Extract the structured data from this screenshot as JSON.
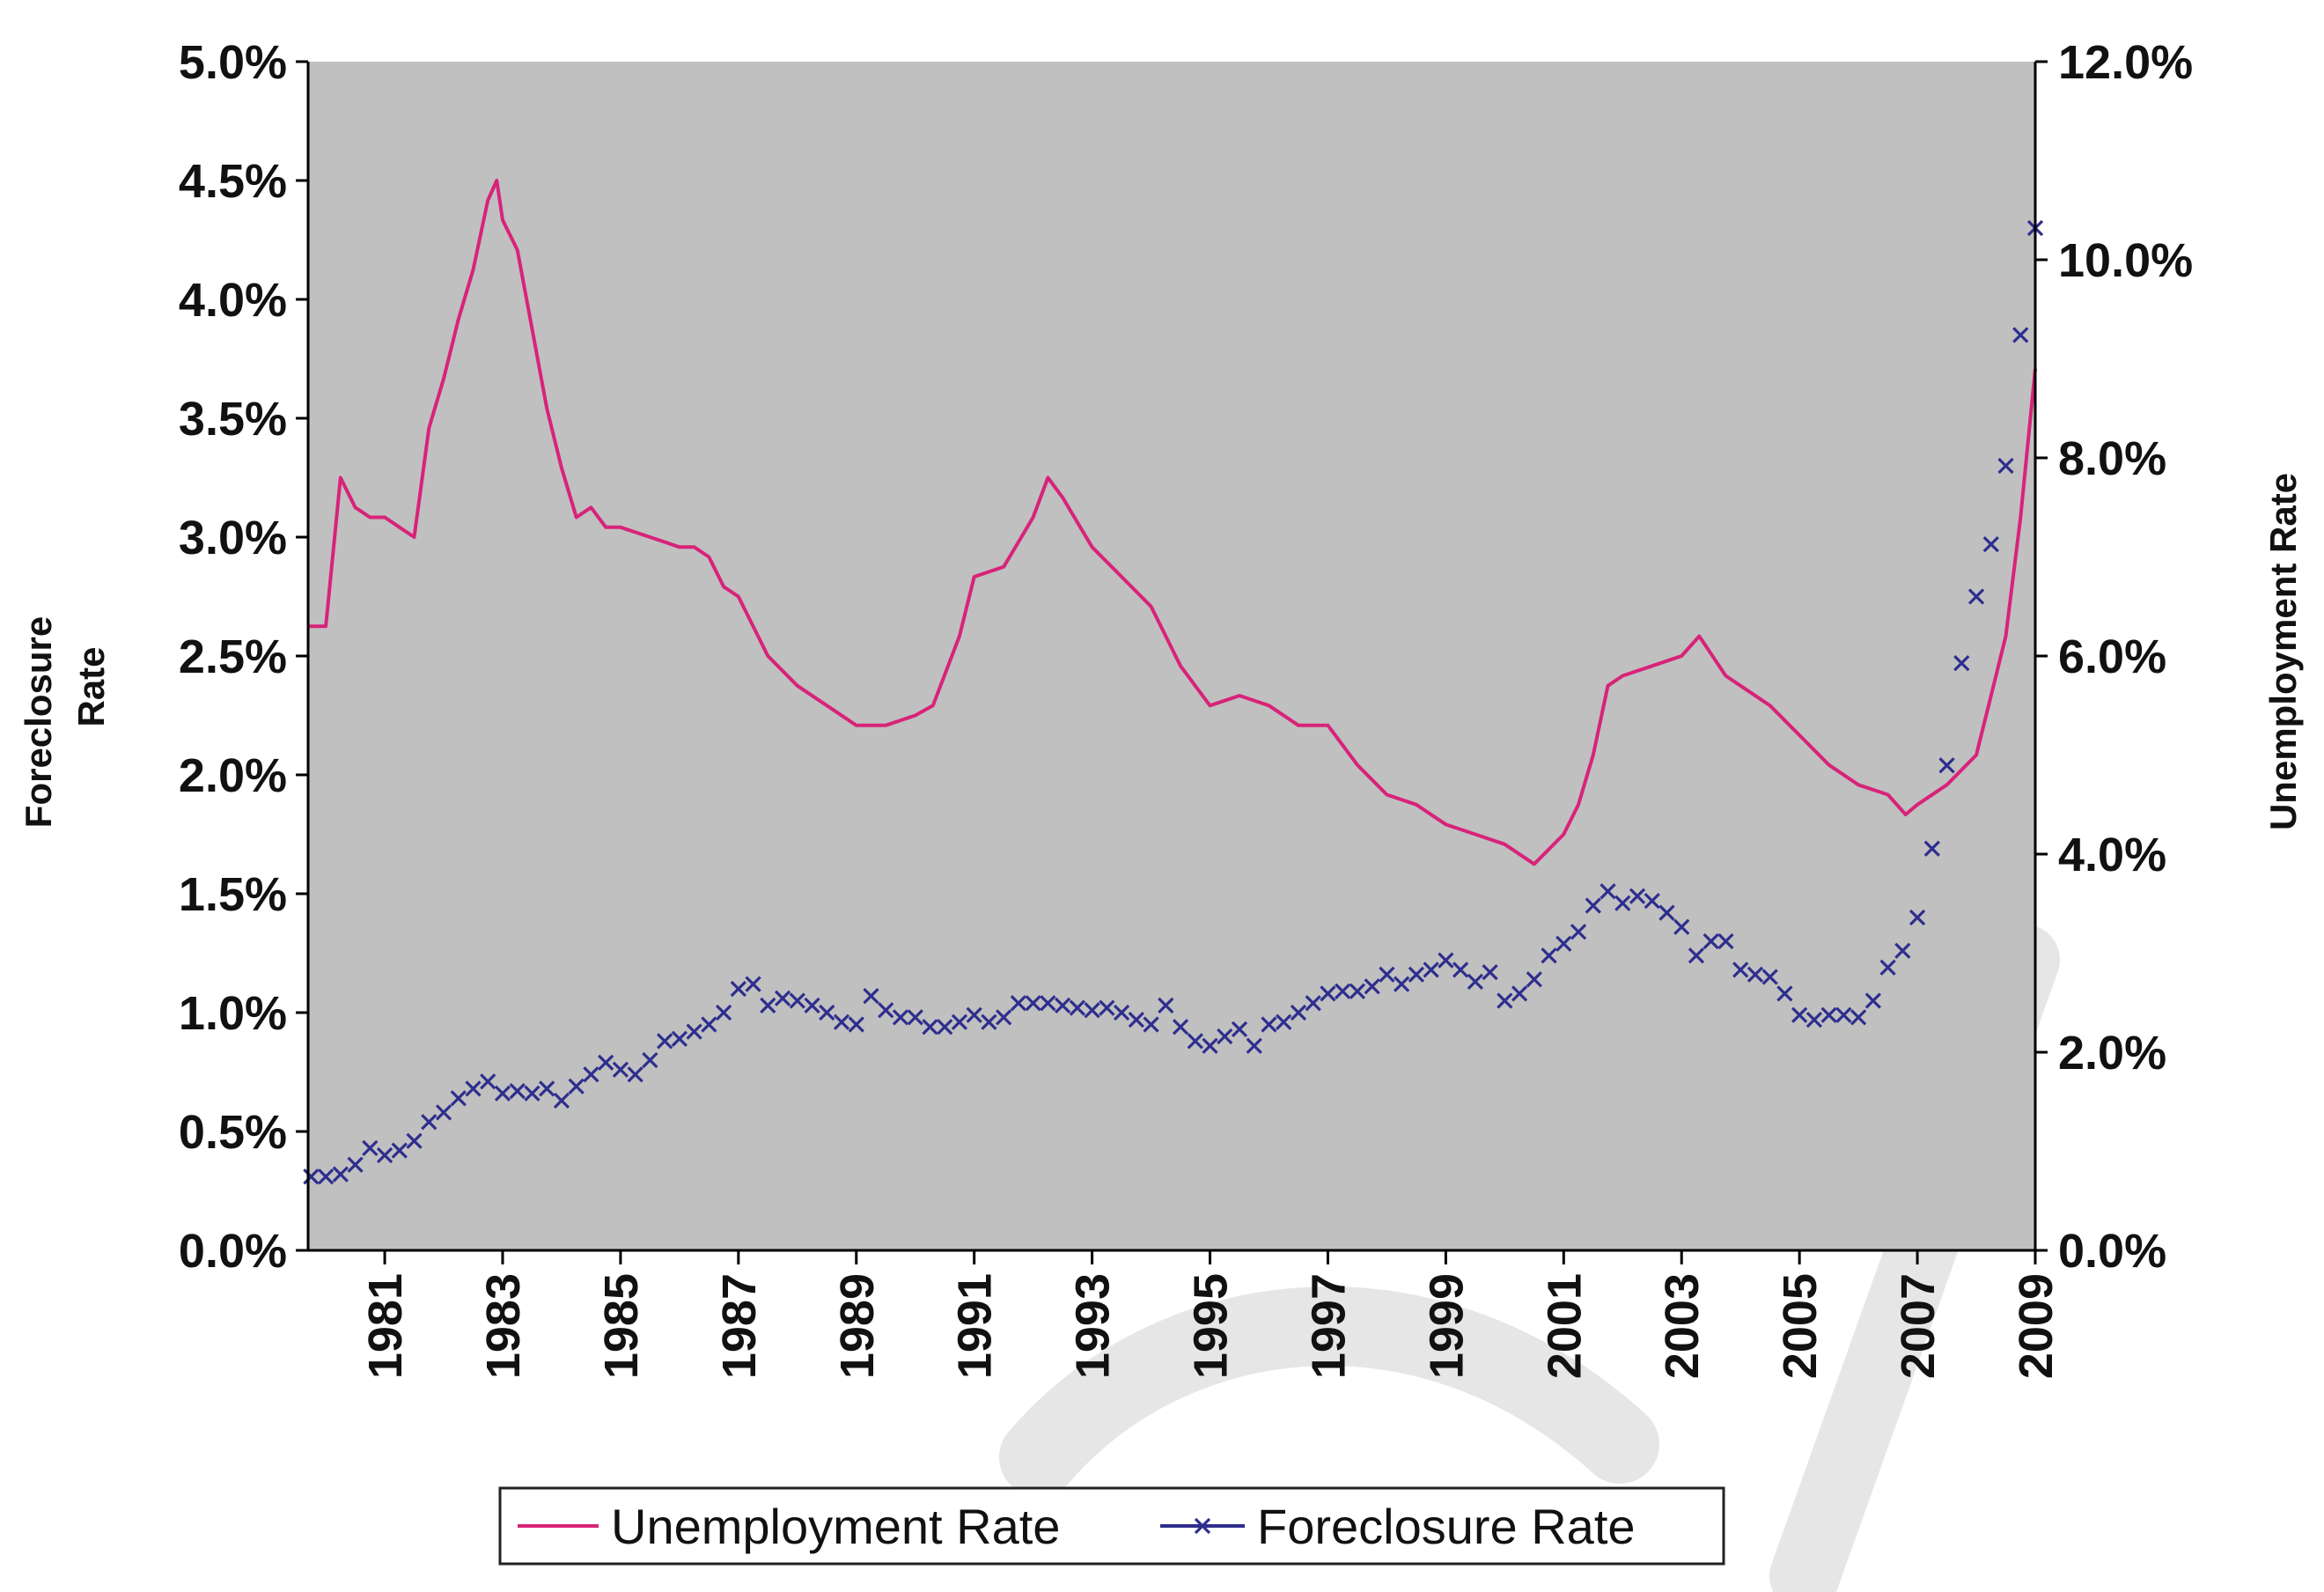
{
  "chart_data": {
    "type": "line",
    "title": "",
    "colors": {
      "plot_background": "#c0c0c0",
      "unemployment": "#d8237a",
      "foreclosure": "#2e2e8e",
      "watermark": "#e6e6e6"
    },
    "grid": false,
    "legend_position": "bottom",
    "x_axis": {
      "range": [
        1979.7,
        2009.0
      ],
      "ticks": [
        1981,
        1983,
        1985,
        1987,
        1989,
        1991,
        1993,
        1995,
        1997,
        1999,
        2001,
        2003,
        2005,
        2007,
        2009
      ],
      "tick_labels": [
        "1981",
        "1983",
        "1985",
        "1987",
        "1989",
        "1991",
        "1993",
        "1995",
        "1997",
        "1999",
        "2001",
        "2003",
        "2005",
        "2007",
        "2009"
      ]
    },
    "left_axis": {
      "title_lines": [
        "Foreclosure",
        "Rate"
      ],
      "range": [
        0,
        5.0
      ],
      "ticks": [
        0,
        0.5,
        1.0,
        1.5,
        2.0,
        2.5,
        3.0,
        3.5,
        4.0,
        4.5,
        5.0
      ],
      "tick_labels": [
        "0.0%",
        "0.5%",
        "1.0%",
        "1.5%",
        "2.0%",
        "2.5%",
        "3.0%",
        "3.5%",
        "4.0%",
        "4.5%",
        "5.0%"
      ]
    },
    "right_axis": {
      "title": "Unemployment Rate",
      "range": [
        0,
        12.0
      ],
      "ticks": [
        0,
        2.0,
        4.0,
        6.0,
        8.0,
        10.0,
        12.0
      ],
      "tick_labels": [
        "0.0%",
        "2.0%",
        "4.0%",
        "6.0%",
        "8.0%",
        "10.0%",
        "12.0%"
      ]
    },
    "series": [
      {
        "name": "Unemployment Rate",
        "axis": "right",
        "marker": "none",
        "x": [
          1979.7,
          1980.0,
          1980.25,
          1980.5,
          1980.75,
          1981.0,
          1981.25,
          1981.5,
          1981.75,
          1982.0,
          1982.25,
          1982.5,
          1982.75,
          1982.9,
          1983.0,
          1983.25,
          1983.5,
          1983.75,
          1984.0,
          1984.25,
          1984.5,
          1984.75,
          1985.0,
          1985.5,
          1986.0,
          1986.25,
          1986.5,
          1986.75,
          1987.0,
          1987.5,
          1988.0,
          1988.5,
          1989.0,
          1989.5,
          1990.0,
          1990.3,
          1990.75,
          1991.0,
          1991.5,
          1992.0,
          1992.25,
          1992.5,
          1993.0,
          1993.5,
          1994.0,
          1994.5,
          1995.0,
          1995.5,
          1996.0,
          1996.5,
          1997.0,
          1997.5,
          1998.0,
          1998.5,
          1999.0,
          1999.5,
          2000.0,
          2000.5,
          2001.0,
          2001.25,
          2001.5,
          2001.75,
          2002.0,
          2002.5,
          2003.0,
          2003.3,
          2003.75,
          2004.0,
          2004.5,
          2005.0,
          2005.5,
          2006.0,
          2006.5,
          2006.8,
          2007.0,
          2007.5,
          2008.0,
          2008.25,
          2008.5,
          2008.75,
          2009.0
        ],
        "values": [
          6.3,
          6.3,
          7.8,
          7.5,
          7.4,
          7.4,
          7.3,
          7.2,
          8.3,
          8.8,
          9.4,
          9.9,
          10.6,
          10.8,
          10.4,
          10.1,
          9.3,
          8.5,
          7.9,
          7.4,
          7.5,
          7.3,
          7.3,
          7.2,
          7.1,
          7.1,
          7.0,
          6.7,
          6.6,
          6.0,
          5.7,
          5.5,
          5.3,
          5.3,
          5.4,
          5.5,
          6.2,
          6.8,
          6.9,
          7.4,
          7.8,
          7.6,
          7.1,
          6.8,
          6.5,
          5.9,
          5.5,
          5.6,
          5.5,
          5.3,
          5.3,
          4.9,
          4.6,
          4.5,
          4.3,
          4.2,
          4.1,
          3.9,
          4.2,
          4.5,
          5.0,
          5.7,
          5.8,
          5.9,
          6.0,
          6.2,
          5.8,
          5.7,
          5.5,
          5.2,
          4.9,
          4.7,
          4.6,
          4.4,
          4.5,
          4.7,
          5.0,
          5.6,
          6.2,
          7.4,
          8.9
        ]
      },
      {
        "name": "Foreclosure Rate",
        "axis": "left",
        "marker": "x",
        "x": [
          1979.75,
          1980.0,
          1980.25,
          1980.5,
          1980.75,
          1981.0,
          1981.25,
          1981.5,
          1981.75,
          1982.0,
          1982.25,
          1982.5,
          1982.75,
          1983.0,
          1983.25,
          1983.5,
          1983.75,
          1984.0,
          1984.25,
          1984.5,
          1984.75,
          1985.0,
          1985.25,
          1985.5,
          1985.75,
          1986.0,
          1986.25,
          1986.5,
          1986.75,
          1987.0,
          1987.25,
          1987.5,
          1987.75,
          1988.0,
          1988.25,
          1988.5,
          1988.75,
          1989.0,
          1989.25,
          1989.5,
          1989.75,
          1990.0,
          1990.25,
          1990.5,
          1990.75,
          1991.0,
          1991.25,
          1991.5,
          1991.75,
          1992.0,
          1992.25,
          1992.5,
          1992.75,
          1993.0,
          1993.25,
          1993.5,
          1993.75,
          1994.0,
          1994.25,
          1994.5,
          1994.75,
          1995.0,
          1995.25,
          1995.5,
          1995.75,
          1996.0,
          1996.25,
          1996.5,
          1996.75,
          1997.0,
          1997.25,
          1997.5,
          1997.75,
          1998.0,
          1998.25,
          1998.5,
          1998.75,
          1999.0,
          1999.25,
          1999.5,
          1999.75,
          2000.0,
          2000.25,
          2000.5,
          2000.75,
          2001.0,
          2001.25,
          2001.5,
          2001.75,
          2002.0,
          2002.25,
          2002.5,
          2002.75,
          2003.0,
          2003.25,
          2003.5,
          2003.75,
          2004.0,
          2004.25,
          2004.5,
          2004.75,
          2005.0,
          2005.25,
          2005.5,
          2005.75,
          2006.0,
          2006.25,
          2006.5,
          2006.75,
          2007.0,
          2007.25,
          2007.5,
          2007.75,
          2008.0,
          2008.25,
          2008.5,
          2008.75,
          2009.0
        ],
        "values": [
          0.31,
          0.31,
          0.32,
          0.36,
          0.43,
          0.4,
          0.42,
          0.46,
          0.54,
          0.58,
          0.64,
          0.68,
          0.71,
          0.66,
          0.67,
          0.66,
          0.68,
          0.63,
          0.69,
          0.74,
          0.79,
          0.76,
          0.74,
          0.8,
          0.88,
          0.89,
          0.92,
          0.95,
          1.0,
          1.1,
          1.12,
          1.03,
          1.06,
          1.05,
          1.03,
          1.0,
          0.96,
          0.95,
          1.07,
          1.01,
          0.98,
          0.98,
          0.94,
          0.94,
          0.96,
          0.99,
          0.96,
          0.98,
          1.04,
          1.04,
          1.04,
          1.03,
          1.02,
          1.01,
          1.02,
          1.0,
          0.97,
          0.95,
          1.03,
          0.94,
          0.88,
          0.86,
          0.9,
          0.93,
          0.86,
          0.95,
          0.96,
          1.0,
          1.04,
          1.08,
          1.09,
          1.09,
          1.11,
          1.16,
          1.12,
          1.16,
          1.18,
          1.22,
          1.18,
          1.13,
          1.17,
          1.05,
          1.08,
          1.14,
          1.24,
          1.29,
          1.34,
          1.45,
          1.51,
          1.46,
          1.49,
          1.47,
          1.42,
          1.36,
          1.24,
          1.3,
          1.3,
          1.18,
          1.16,
          1.15,
          1.08,
          0.99,
          0.97,
          0.99,
          0.99,
          0.98,
          1.05,
          1.19,
          1.26,
          1.4,
          1.69,
          2.04,
          2.47,
          2.75,
          2.97,
          3.3,
          3.85,
          4.3
        ]
      }
    ]
  }
}
